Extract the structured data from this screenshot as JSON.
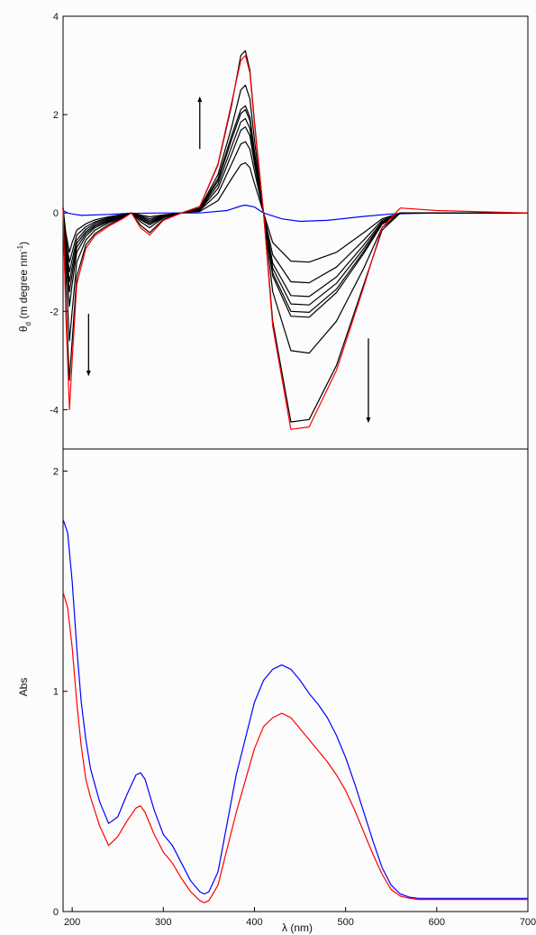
{
  "chart_data": [
    {
      "panel": "top",
      "type": "line",
      "title": "",
      "xlabel": "",
      "ylabel": "θ_d (m degree nm⁻¹)",
      "ylabel_parts": {
        "theta": "θ",
        "sub": "d",
        "rest": " (m degree nm",
        "sup": "-1",
        "close": ")"
      },
      "xlim": [
        190,
        700
      ],
      "ylim": [
        -4.8,
        4
      ],
      "yticks": [
        -4,
        -2,
        0,
        2,
        4
      ],
      "ytick_labels": [
        "-4",
        "-2",
        "0",
        "2",
        "4"
      ],
      "grid": false,
      "legend": "none",
      "annotations": [
        {
          "kind": "arrow",
          "direction": "up",
          "x": 340,
          "y_from": 1.3,
          "y_to": 2.35
        },
        {
          "kind": "arrow",
          "direction": "down",
          "x": 218,
          "y_from": -2.05,
          "y_to": -3.3
        },
        {
          "kind": "arrow",
          "direction": "down",
          "x": 525,
          "y_from": -2.55,
          "y_to": -4.25
        }
      ],
      "series": [
        {
          "color": "#0000ff",
          "x": [
            190,
            195,
            200,
            210,
            240,
            260,
            300,
            340,
            370,
            385,
            390,
            400,
            410,
            430,
            450,
            480,
            520,
            550,
            600,
            700
          ],
          "y": [
            0.05,
            0,
            -0.02,
            -0.05,
            -0.03,
            -0.01,
            0,
            0,
            0.05,
            0.14,
            0.16,
            0.12,
            0,
            -0.12,
            -0.17,
            -0.15,
            -0.07,
            -0.02,
            0,
            0
          ]
        },
        {
          "color": "#000000",
          "x": [
            190,
            193,
            197,
            200,
            205,
            215,
            225,
            240,
            255,
            265,
            275,
            285,
            300,
            320,
            340,
            360,
            375,
            385,
            390,
            395,
            400,
            410,
            420,
            440,
            460,
            490,
            520,
            540,
            560,
            600,
            700
          ],
          "y": [
            0.1,
            -0.4,
            -0.8,
            -0.6,
            -0.35,
            -0.22,
            -0.14,
            -0.08,
            -0.03,
            0,
            -0.04,
            -0.08,
            -0.04,
            0,
            0.03,
            0.25,
            0.7,
            0.98,
            1.02,
            0.92,
            0.6,
            0,
            -0.6,
            -0.98,
            -1,
            -0.8,
            -0.4,
            -0.12,
            0,
            0,
            0
          ]
        },
        {
          "color": "#000000",
          "x": [
            190,
            193,
            197,
            200,
            205,
            215,
            225,
            240,
            255,
            265,
            275,
            285,
            300,
            320,
            340,
            360,
            375,
            385,
            390,
            395,
            400,
            410,
            420,
            440,
            460,
            490,
            520,
            540,
            560,
            600,
            700
          ],
          "y": [
            0.1,
            -0.5,
            -1,
            -0.8,
            -0.45,
            -0.28,
            -0.18,
            -0.1,
            -0.04,
            0,
            -0.06,
            -0.12,
            -0.05,
            0,
            0.05,
            0.4,
            1,
            1.4,
            1.45,
            1.3,
            0.85,
            0,
            -0.85,
            -1.4,
            -1.42,
            -1.1,
            -0.55,
            -0.15,
            0,
            0,
            0
          ]
        },
        {
          "color": "#000000",
          "x": [
            190,
            193,
            197,
            200,
            205,
            215,
            225,
            240,
            255,
            265,
            275,
            285,
            300,
            320,
            340,
            360,
            375,
            385,
            390,
            395,
            400,
            410,
            420,
            440,
            460,
            490,
            520,
            540,
            560,
            600,
            700
          ],
          "y": [
            0.1,
            -0.6,
            -1.2,
            -0.95,
            -0.55,
            -0.33,
            -0.21,
            -0.12,
            -0.05,
            0,
            -0.08,
            -0.15,
            -0.06,
            0,
            0.06,
            0.5,
            1.2,
            1.68,
            1.75,
            1.57,
            1,
            0,
            -1.02,
            -1.68,
            -1.7,
            -1.3,
            -0.65,
            -0.18,
            0,
            0,
            0
          ]
        },
        {
          "color": "#000000",
          "x": [
            190,
            193,
            197,
            200,
            205,
            215,
            225,
            240,
            255,
            265,
            275,
            285,
            300,
            320,
            340,
            360,
            375,
            385,
            390,
            395,
            400,
            410,
            420,
            440,
            460,
            490,
            520,
            540,
            560,
            600,
            700
          ],
          "y": [
            0.1,
            -0.7,
            -1.4,
            -1.1,
            -0.62,
            -0.38,
            -0.24,
            -0.14,
            -0.06,
            0,
            -0.1,
            -0.18,
            -0.07,
            0,
            0.07,
            0.58,
            1.35,
            1.85,
            1.92,
            1.72,
            1.1,
            0,
            -1.12,
            -1.85,
            -1.87,
            -1.43,
            -0.72,
            -0.2,
            0,
            0,
            0
          ]
        },
        {
          "color": "#000000",
          "x": [
            190,
            193,
            197,
            200,
            205,
            215,
            225,
            240,
            255,
            265,
            275,
            285,
            300,
            320,
            340,
            360,
            375,
            385,
            390,
            395,
            400,
            410,
            420,
            440,
            460,
            490,
            520,
            540,
            560,
            600,
            700
          ],
          "y": [
            0.1,
            -0.8,
            -1.6,
            -1.25,
            -0.7,
            -0.42,
            -0.27,
            -0.16,
            -0.07,
            0,
            -0.12,
            -0.21,
            -0.08,
            0,
            0.08,
            0.65,
            1.5,
            2.02,
            2.1,
            1.88,
            1.2,
            0,
            -1.22,
            -2,
            -2.02,
            -1.55,
            -0.78,
            -0.22,
            0,
            0,
            0
          ]
        },
        {
          "color": "#000000",
          "x": [
            190,
            193,
            197,
            200,
            205,
            215,
            225,
            240,
            255,
            265,
            275,
            285,
            300,
            320,
            340,
            360,
            375,
            385,
            390,
            395,
            400,
            410,
            420,
            440,
            460,
            490,
            520,
            540,
            560,
            600,
            700
          ],
          "y": [
            0.1,
            -0.9,
            -1.9,
            -1.45,
            -0.8,
            -0.47,
            -0.3,
            -0.18,
            -0.08,
            0,
            -0.14,
            -0.24,
            -0.09,
            0,
            0.09,
            0.7,
            1.58,
            2.1,
            2.18,
            1.95,
            1.25,
            0,
            -1.28,
            -2.1,
            -2.12,
            -1.62,
            -0.82,
            -0.23,
            0,
            0,
            0
          ]
        },
        {
          "color": "#000000",
          "x": [
            190,
            193,
            197,
            200,
            205,
            215,
            225,
            240,
            255,
            265,
            275,
            285,
            300,
            320,
            340,
            360,
            375,
            385,
            390,
            395,
            400,
            410,
            420,
            440,
            460,
            490,
            520,
            540,
            560,
            600,
            700
          ],
          "y": [
            0.1,
            -1.2,
            -2.6,
            -2,
            -1,
            -0.55,
            -0.35,
            -0.2,
            -0.09,
            0,
            -0.18,
            -0.3,
            -0.1,
            0,
            0.1,
            0.78,
            1.75,
            2.5,
            2.6,
            2.32,
            1.48,
            0,
            -1.6,
            -2.8,
            -2.85,
            -2.2,
            -1.12,
            -0.3,
            0,
            0,
            0
          ]
        },
        {
          "color": "#000000",
          "x": [
            190,
            193,
            197,
            200,
            205,
            215,
            225,
            240,
            255,
            265,
            275,
            285,
            300,
            320,
            340,
            360,
            375,
            385,
            390,
            395,
            400,
            410,
            420,
            440,
            460,
            490,
            520,
            540,
            560,
            600,
            700
          ],
          "y": [
            0.1,
            -1.8,
            -3.4,
            -2.6,
            -1.3,
            -0.65,
            -0.42,
            -0.24,
            -0.1,
            0,
            -0.25,
            -0.4,
            -0.13,
            0,
            0.13,
            0.98,
            2.2,
            3.2,
            3.3,
            2.9,
            1.85,
            0,
            -2.2,
            -4.25,
            -4.2,
            -3.1,
            -1.45,
            -0.35,
            0,
            0,
            0
          ]
        },
        {
          "color": "#ff0000",
          "x": [
            190,
            193,
            197,
            200,
            205,
            215,
            225,
            240,
            255,
            265,
            275,
            285,
            300,
            320,
            340,
            360,
            375,
            385,
            390,
            395,
            400,
            410,
            420,
            440,
            460,
            490,
            520,
            540,
            560,
            600,
            700
          ],
          "y": [
            0.1,
            -2,
            -4,
            -3,
            -1.45,
            -0.72,
            -0.46,
            -0.27,
            -0.12,
            0,
            -0.3,
            -0.45,
            -0.15,
            0,
            0.13,
            1,
            2.25,
            3.1,
            3.2,
            2.85,
            1.8,
            0,
            -2.3,
            -4.4,
            -4.35,
            -3.2,
            -1.5,
            -0.3,
            0.1,
            0.05,
            0
          ]
        }
      ]
    },
    {
      "panel": "bottom",
      "type": "line",
      "title": "",
      "xlabel": "λ (nm)",
      "ylabel": "Abs",
      "xlim": [
        190,
        700
      ],
      "ylim": [
        0,
        2.1
      ],
      "xticks": [
        200,
        300,
        400,
        500,
        600,
        700
      ],
      "xtick_labels": [
        "200",
        "300",
        "400",
        "500",
        "600",
        "700"
      ],
      "yticks": [
        0,
        1,
        2
      ],
      "ytick_labels": [
        "0",
        "1",
        "2"
      ],
      "grid": false,
      "legend": "none",
      "series": [
        {
          "color": "#0000ff",
          "x": [
            190,
            195,
            200,
            205,
            210,
            215,
            220,
            230,
            240,
            250,
            260,
            270,
            275,
            280,
            290,
            300,
            310,
            320,
            330,
            340,
            345,
            350,
            360,
            380,
            400,
            410,
            420,
            430,
            440,
            450,
            460,
            470,
            480,
            490,
            500,
            510,
            520,
            530,
            540,
            550,
            560,
            570,
            580,
            600,
            700
          ],
          "y": [
            1.78,
            1.72,
            1.5,
            1.2,
            0.95,
            0.78,
            0.65,
            0.5,
            0.4,
            0.43,
            0.53,
            0.62,
            0.63,
            0.6,
            0.46,
            0.35,
            0.3,
            0.22,
            0.14,
            0.09,
            0.08,
            0.09,
            0.18,
            0.62,
            0.95,
            1.05,
            1.1,
            1.12,
            1.1,
            1.05,
            0.99,
            0.94,
            0.88,
            0.8,
            0.7,
            0.58,
            0.45,
            0.32,
            0.2,
            0.12,
            0.08,
            0.065,
            0.06,
            0.06,
            0.06
          ]
        },
        {
          "color": "#ff0000",
          "x": [
            190,
            195,
            200,
            205,
            210,
            215,
            220,
            230,
            240,
            250,
            260,
            270,
            275,
            280,
            290,
            300,
            310,
            320,
            330,
            340,
            345,
            350,
            360,
            380,
            400,
            410,
            420,
            430,
            440,
            450,
            460,
            470,
            480,
            490,
            500,
            510,
            520,
            530,
            540,
            550,
            560,
            570,
            580,
            600,
            700
          ],
          "y": [
            1.45,
            1.38,
            1.2,
            0.95,
            0.75,
            0.6,
            0.52,
            0.39,
            0.3,
            0.34,
            0.41,
            0.47,
            0.48,
            0.45,
            0.35,
            0.27,
            0.22,
            0.15,
            0.09,
            0.05,
            0.04,
            0.05,
            0.12,
            0.45,
            0.74,
            0.84,
            0.88,
            0.9,
            0.88,
            0.83,
            0.78,
            0.73,
            0.68,
            0.62,
            0.55,
            0.46,
            0.36,
            0.26,
            0.17,
            0.1,
            0.07,
            0.06,
            0.055,
            0.055,
            0.055
          ]
        }
      ]
    }
  ]
}
